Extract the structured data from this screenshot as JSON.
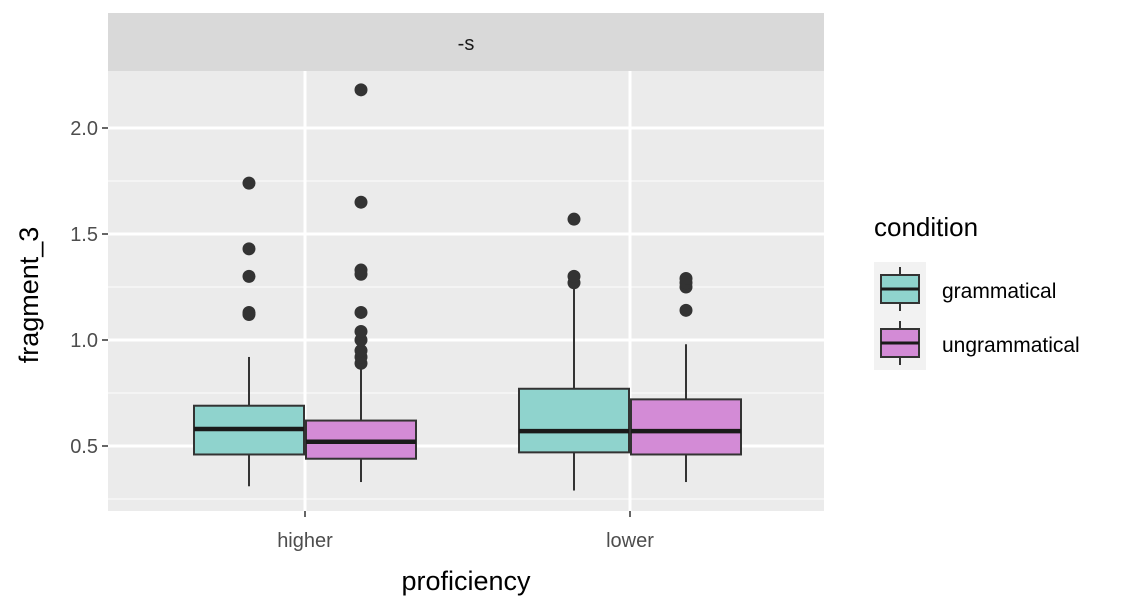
{
  "chart_data": {
    "type": "box",
    "facet_label": "-s",
    "xlabel": "proficiency",
    "ylabel": "fragment_3",
    "categories": [
      "higher",
      "lower"
    ],
    "y_ticks": [
      0.5,
      1.0,
      1.5,
      2.0
    ],
    "y_tick_labels": [
      "0.5",
      "1.0",
      "1.5",
      "2.0"
    ],
    "ylim": [
      0.22,
      2.28
    ],
    "grid": true,
    "legend": {
      "title": "condition",
      "position": "right",
      "entries": [
        {
          "label": "grammatical",
          "color": "#8fd3cd"
        },
        {
          "label": "ungrammatical",
          "color": "#d38bd6"
        }
      ]
    },
    "series": [
      {
        "name": "grammatical",
        "color": "#8fd3cd",
        "boxes": [
          {
            "category": "higher",
            "whisker_low": 0.31,
            "q1": 0.46,
            "median": 0.58,
            "q3": 0.69,
            "whisker_high": 0.92,
            "outliers": [
              1.12,
              1.13,
              1.3,
              1.43,
              1.74
            ]
          },
          {
            "category": "lower",
            "whisker_low": 0.29,
            "q1": 0.47,
            "median": 0.57,
            "q3": 0.77,
            "whisker_high": 1.25,
            "outliers": [
              1.27,
              1.3,
              1.57
            ]
          }
        ]
      },
      {
        "name": "ungrammatical",
        "color": "#d38bd6",
        "boxes": [
          {
            "category": "higher",
            "whisker_low": 0.33,
            "q1": 0.44,
            "median": 0.52,
            "q3": 0.62,
            "whisker_high": 0.87,
            "outliers": [
              0.89,
              0.92,
              0.95,
              1.0,
              1.04,
              1.13,
              1.31,
              1.33,
              1.65,
              2.18
            ]
          },
          {
            "category": "lower",
            "whisker_low": 0.33,
            "q1": 0.46,
            "median": 0.57,
            "q3": 0.72,
            "whisker_high": 0.98,
            "outliers": [
              1.14,
              1.25,
              1.27,
              1.29
            ]
          }
        ]
      }
    ]
  }
}
